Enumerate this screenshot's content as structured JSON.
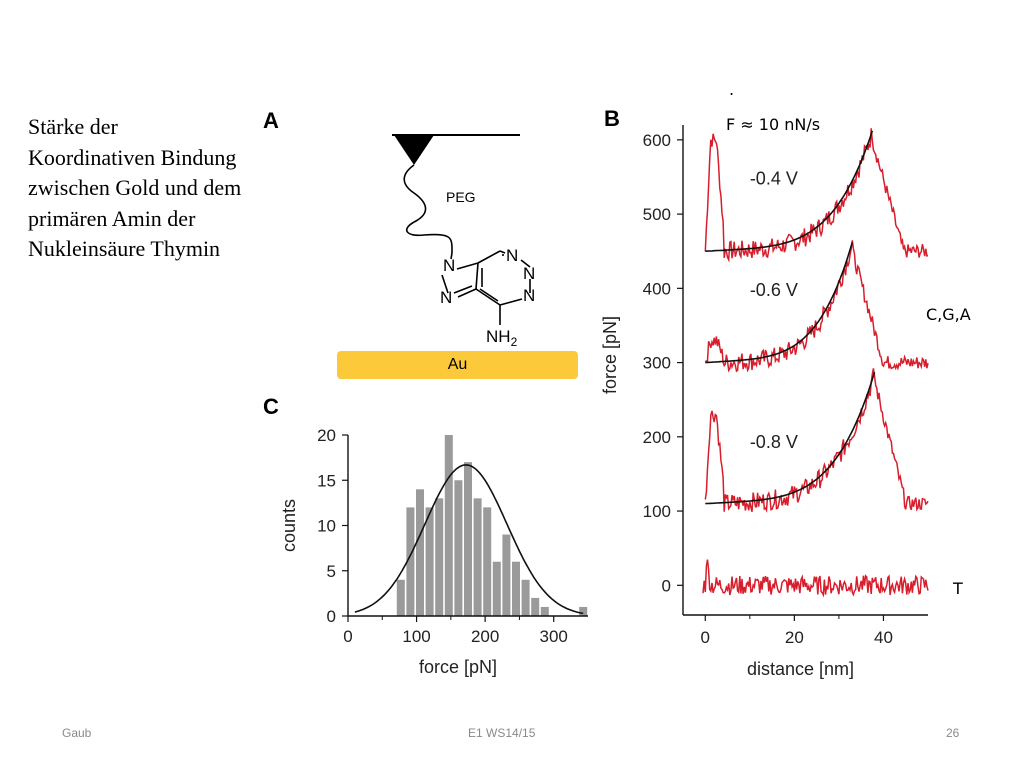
{
  "slide": {
    "text": "Stärke der Koordinativen Bindung zwischen Gold und dem primären Amin der Nukleinsäure Thymin",
    "panel_a_label": "A",
    "panel_b_label": "B",
    "panel_c_label": "C",
    "peg_label": "PEG",
    "au_label": "Au",
    "nh2_label": "NH",
    "nh2_sub": "2",
    "ring_n1": "N",
    "ring_n2": "N",
    "ring_n3": "N",
    "ring_n4": "N",
    "ring_n5": "N",
    "dot": ".",
    "loading_rate": "F ≈ 10 nN/s",
    "bases_label": "C,G,A",
    "t_label": "T",
    "colors": {
      "au_bar": "#fbc93a",
      "curve_red": "#d81e2c",
      "bar_gray": "#9a9a9a",
      "fit": "#111111"
    }
  },
  "footer": {
    "left": "Gaub",
    "center": "E1 WS14/15",
    "page": "26"
  },
  "chart_data": [
    {
      "type": "bar",
      "panel": "C",
      "xlabel": "force [pN]",
      "ylabel": "counts",
      "xlim": [
        0,
        350
      ],
      "ylim": [
        0,
        20
      ],
      "xticks": [
        "0",
        "100",
        "200",
        "300"
      ],
      "yticks": [
        "0",
        "5",
        "10",
        "15",
        "20"
      ],
      "bin_width": 14,
      "bins_start": [
        70,
        84,
        98,
        112,
        126,
        140,
        154,
        168,
        182,
        196,
        210,
        224,
        238,
        252,
        266,
        280,
        294,
        308,
        322,
        336
      ],
      "values": [
        4,
        12,
        14,
        12,
        13,
        20,
        15,
        17,
        13,
        12,
        6,
        9,
        6,
        4,
        2,
        1,
        0,
        0,
        0,
        1
      ],
      "fit": {
        "type": "gaussian",
        "amplitude": 16.7,
        "mean": 172,
        "sigma": 60
      }
    },
    {
      "type": "line",
      "panel": "B",
      "xlabel": "distance [nm]",
      "ylabel": "force [pN]",
      "xlim": [
        -5,
        50
      ],
      "ylim": [
        -40,
        620
      ],
      "xticks": [
        "0",
        "20",
        "40"
      ],
      "yticks": [
        "0",
        "100",
        "200",
        "300",
        "400",
        "500",
        "600"
      ],
      "curve_labels": [
        "-0.4 V",
        "-0.6 V",
        "-0.8 V"
      ],
      "series": [
        {
          "offset": 450,
          "spike": 150,
          "peak_x": 37.5,
          "peak_y": 150,
          "noise": 12
        },
        {
          "offset": 300,
          "spike": 30,
          "peak_x": 33,
          "peak_y": 150,
          "noise": 12
        },
        {
          "offset": 110,
          "spike": 120,
          "peak_x": 38,
          "peak_y": 165,
          "noise": 12
        },
        {
          "offset": 0,
          "spike": 45,
          "peak_x": 0,
          "peak_y": 0,
          "noise": 12
        }
      ]
    }
  ]
}
